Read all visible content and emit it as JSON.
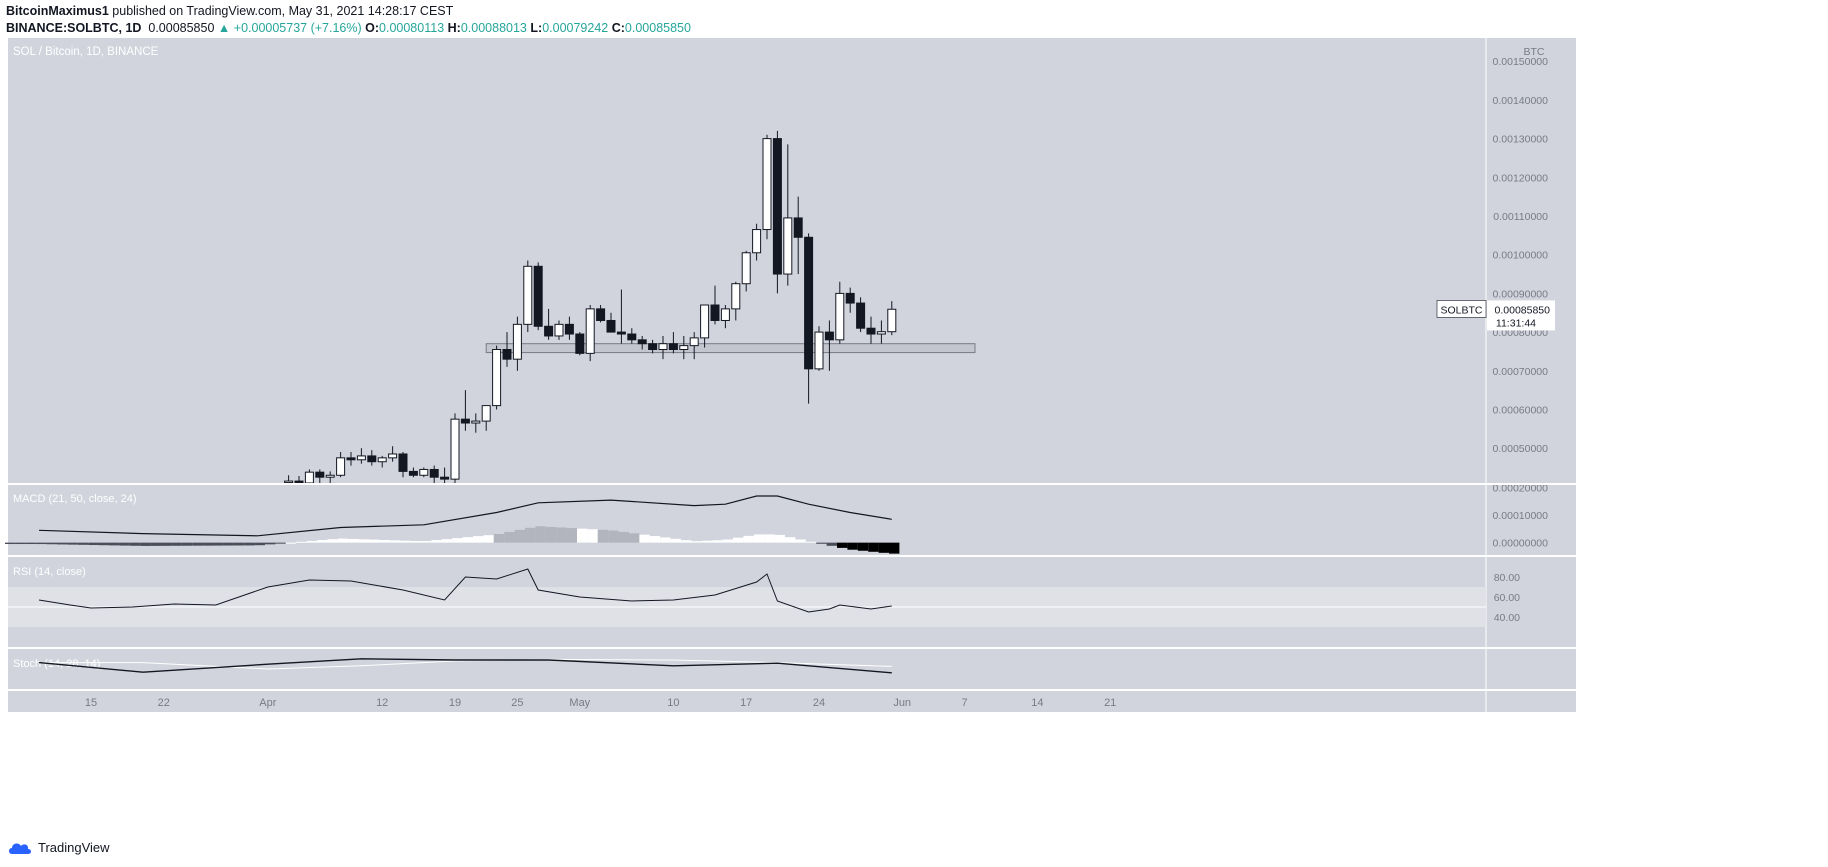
{
  "header": {
    "author": "BitcoinMaximus1",
    "published": "published on TradingView.com, May 31, 2021 14:28:17 CEST",
    "symbol": "BINANCE:SOLBTC, 1D",
    "last": "0.00085850",
    "change_arrow": "▲",
    "change": "+0.00005737 (+7.16%)",
    "o_label": "O:",
    "o": "0.00080113",
    "h_label": "H:",
    "h": "0.00088013",
    "l_label": "L:",
    "l": "0.00079242",
    "c_label": "C:",
    "c": "0.00085850"
  },
  "footer": {
    "brand": "TradingView",
    "logo_icon": "tradingview-cloud-icon"
  },
  "colors": {
    "background": "#d1d4dc",
    "candle_up": "#ffffff",
    "candle_down": "#131722",
    "rsi_band": "#dfe1e7",
    "line": "#131722"
  },
  "chart_data": {
    "type": "candlestick",
    "title": "SOL / Bitcoin, 1D, BINANCE",
    "price_axis_label": "BTC",
    "y_ticks": [
      "0.00150000",
      "0.00140000",
      "0.00130000",
      "0.00120000",
      "0.00110000",
      "0.00100000",
      "0.00090000",
      "0.00080000",
      "0.00070000",
      "0.00060000",
      "0.00050000"
    ],
    "ylim": [
      0.00041,
      0.00156
    ],
    "x_tick_labels": [
      "15",
      "22",
      "Apr",
      "12",
      "19",
      "25",
      "May",
      "10",
      "17",
      "24",
      "Jun",
      "7",
      "14",
      "21"
    ],
    "x_tick_dates": [
      "2021-03-15",
      "2021-03-22",
      "2021-04-01",
      "2021-04-12",
      "2021-04-19",
      "2021-04-25",
      "2021-05-01",
      "2021-05-10",
      "2021-05-17",
      "2021-05-24",
      "2021-06-01",
      "2021-06-07",
      "2021-06-14",
      "2021-06-21"
    ],
    "last_price_label": {
      "symbol": "SOLBTC",
      "price": "0.00085850",
      "countdown": "11:31:44"
    },
    "support_zone": {
      "from": "2021-04-22",
      "to": "2021-06-08",
      "low": 0.000747,
      "high": 0.00077
    },
    "candles": [
      {
        "d": "2021-04-03",
        "o": 0.000412,
        "h": 0.00043,
        "l": 0.000405,
        "c": 0.000415
      },
      {
        "d": "2021-04-04",
        "o": 0.000415,
        "h": 0.000428,
        "l": 0.000405,
        "c": 0.00041
      },
      {
        "d": "2021-04-05",
        "o": 0.00041,
        "h": 0.000445,
        "l": 0.000405,
        "c": 0.000438
      },
      {
        "d": "2021-04-06",
        "o": 0.000438,
        "h": 0.000445,
        "l": 0.00041,
        "c": 0.000425
      },
      {
        "d": "2021-04-07",
        "o": 0.000425,
        "h": 0.00044,
        "l": 0.00041,
        "c": 0.00043
      },
      {
        "d": "2021-04-08",
        "o": 0.00043,
        "h": 0.00049,
        "l": 0.000425,
        "c": 0.000475
      },
      {
        "d": "2021-04-09",
        "o": 0.000475,
        "h": 0.00049,
        "l": 0.000455,
        "c": 0.00047
      },
      {
        "d": "2021-04-10",
        "o": 0.00047,
        "h": 0.0005,
        "l": 0.00046,
        "c": 0.00048
      },
      {
        "d": "2021-04-11",
        "o": 0.00048,
        "h": 0.000495,
        "l": 0.000455,
        "c": 0.000465
      },
      {
        "d": "2021-04-12",
        "o": 0.000465,
        "h": 0.00048,
        "l": 0.00045,
        "c": 0.000475
      },
      {
        "d": "2021-04-13",
        "o": 0.000475,
        "h": 0.000505,
        "l": 0.000465,
        "c": 0.000485
      },
      {
        "d": "2021-04-14",
        "o": 0.000485,
        "h": 0.00049,
        "l": 0.000425,
        "c": 0.00044
      },
      {
        "d": "2021-04-15",
        "o": 0.00044,
        "h": 0.00045,
        "l": 0.000425,
        "c": 0.00043
      },
      {
        "d": "2021-04-16",
        "o": 0.00043,
        "h": 0.00045,
        "l": 0.000425,
        "c": 0.000445
      },
      {
        "d": "2021-04-17",
        "o": 0.000445,
        "h": 0.000455,
        "l": 0.00041,
        "c": 0.000425
      },
      {
        "d": "2021-04-18",
        "o": 0.000425,
        "h": 0.00045,
        "l": 0.00041,
        "c": 0.00042
      },
      {
        "d": "2021-04-19",
        "o": 0.00042,
        "h": 0.00059,
        "l": 0.00041,
        "c": 0.000575
      },
      {
        "d": "2021-04-20",
        "o": 0.000575,
        "h": 0.00065,
        "l": 0.000545,
        "c": 0.000565
      },
      {
        "d": "2021-04-21",
        "o": 0.000565,
        "h": 0.00059,
        "l": 0.00054,
        "c": 0.00057
      },
      {
        "d": "2021-04-22",
        "o": 0.00057,
        "h": 0.00061,
        "l": 0.000545,
        "c": 0.00061
      },
      {
        "d": "2021-04-23",
        "o": 0.00061,
        "h": 0.000765,
        "l": 0.0006,
        "c": 0.000755
      },
      {
        "d": "2021-04-24",
        "o": 0.000755,
        "h": 0.0008,
        "l": 0.00071,
        "c": 0.00073
      },
      {
        "d": "2021-04-25",
        "o": 0.00073,
        "h": 0.00084,
        "l": 0.0007,
        "c": 0.00082
      },
      {
        "d": "2021-04-26",
        "o": 0.00082,
        "h": 0.000985,
        "l": 0.0008,
        "c": 0.00097
      },
      {
        "d": "2021-04-27",
        "o": 0.00097,
        "h": 0.00098,
        "l": 0.000805,
        "c": 0.000815
      },
      {
        "d": "2021-04-28",
        "o": 0.000815,
        "h": 0.00086,
        "l": 0.00078,
        "c": 0.00079
      },
      {
        "d": "2021-04-29",
        "o": 0.00079,
        "h": 0.00083,
        "l": 0.00078,
        "c": 0.00082
      },
      {
        "d": "2021-04-30",
        "o": 0.00082,
        "h": 0.00084,
        "l": 0.00078,
        "c": 0.000795
      },
      {
        "d": "2021-05-01",
        "o": 0.000795,
        "h": 0.0008,
        "l": 0.00074,
        "c": 0.000745
      },
      {
        "d": "2021-05-02",
        "o": 0.000745,
        "h": 0.00087,
        "l": 0.000725,
        "c": 0.00086
      },
      {
        "d": "2021-05-03",
        "o": 0.00086,
        "h": 0.00087,
        "l": 0.000825,
        "c": 0.00083
      },
      {
        "d": "2021-05-04",
        "o": 0.00083,
        "h": 0.00085,
        "l": 0.0008,
        "c": 0.0008
      },
      {
        "d": "2021-05-05",
        "o": 0.0008,
        "h": 0.00091,
        "l": 0.00077,
        "c": 0.000795
      },
      {
        "d": "2021-05-06",
        "o": 0.000795,
        "h": 0.00081,
        "l": 0.00077,
        "c": 0.00078
      },
      {
        "d": "2021-05-07",
        "o": 0.00078,
        "h": 0.00079,
        "l": 0.000755,
        "c": 0.00077
      },
      {
        "d": "2021-05-08",
        "o": 0.00077,
        "h": 0.00078,
        "l": 0.000745,
        "c": 0.000755
      },
      {
        "d": "2021-05-09",
        "o": 0.000755,
        "h": 0.00079,
        "l": 0.00073,
        "c": 0.00077
      },
      {
        "d": "2021-05-10",
        "o": 0.00077,
        "h": 0.0008,
        "l": 0.000745,
        "c": 0.000755
      },
      {
        "d": "2021-05-11",
        "o": 0.000755,
        "h": 0.00079,
        "l": 0.00073,
        "c": 0.000765
      },
      {
        "d": "2021-05-12",
        "o": 0.000765,
        "h": 0.0008,
        "l": 0.00073,
        "c": 0.000785
      },
      {
        "d": "2021-05-13",
        "o": 0.000785,
        "h": 0.00087,
        "l": 0.00076,
        "c": 0.00087
      },
      {
        "d": "2021-05-14",
        "o": 0.00087,
        "h": 0.00092,
        "l": 0.00082,
        "c": 0.00083
      },
      {
        "d": "2021-05-15",
        "o": 0.00083,
        "h": 0.00087,
        "l": 0.00081,
        "c": 0.00086
      },
      {
        "d": "2021-05-16",
        "o": 0.00086,
        "h": 0.00093,
        "l": 0.00083,
        "c": 0.000925
      },
      {
        "d": "2021-05-17",
        "o": 0.000925,
        "h": 0.00101,
        "l": 0.000905,
        "c": 0.001005
      },
      {
        "d": "2021-05-18",
        "o": 0.001005,
        "h": 0.00108,
        "l": 0.000985,
        "c": 0.001065
      },
      {
        "d": "2021-05-19",
        "o": 0.001065,
        "h": 0.00131,
        "l": 0.00104,
        "c": 0.0013
      },
      {
        "d": "2021-05-20",
        "o": 0.0013,
        "h": 0.00132,
        "l": 0.0009,
        "c": 0.00095
      },
      {
        "d": "2021-05-21",
        "o": 0.00095,
        "h": 0.001285,
        "l": 0.00092,
        "c": 0.001095
      },
      {
        "d": "2021-05-22",
        "o": 0.001095,
        "h": 0.00115,
        "l": 0.00095,
        "c": 0.001045
      },
      {
        "d": "2021-05-23",
        "o": 0.001045,
        "h": 0.001055,
        "l": 0.000615,
        "c": 0.000705
      },
      {
        "d": "2021-05-24",
        "o": 0.000705,
        "h": 0.000815,
        "l": 0.0007,
        "c": 0.0008
      },
      {
        "d": "2021-05-25",
        "o": 0.0008,
        "h": 0.00083,
        "l": 0.0007,
        "c": 0.00078
      },
      {
        "d": "2021-05-26",
        "o": 0.00078,
        "h": 0.00093,
        "l": 0.00077,
        "c": 0.0009
      },
      {
        "d": "2021-05-27",
        "o": 0.0009,
        "h": 0.000915,
        "l": 0.00085,
        "c": 0.000875
      },
      {
        "d": "2021-05-28",
        "o": 0.000875,
        "h": 0.00089,
        "l": 0.0008,
        "c": 0.00081
      },
      {
        "d": "2021-05-29",
        "o": 0.00081,
        "h": 0.00084,
        "l": 0.00077,
        "c": 0.000795
      },
      {
        "d": "2021-05-30",
        "o": 0.000795,
        "h": 0.00083,
        "l": 0.00077,
        "c": 0.000801
      },
      {
        "d": "2021-05-31",
        "o": 0.000801,
        "h": 0.00088,
        "l": 0.000792,
        "c": 0.000859
      }
    ],
    "macd": {
      "title": "MACD (21, 50, close, 24)",
      "y_ticks": [
        "0.00020000",
        "0.00010000",
        "0.00000000"
      ],
      "ylim": [
        -4.5e-05,
        0.00021
      ],
      "dates": [
        "2021-03-10",
        "2021-03-20",
        "2021-03-31",
        "2021-04-08",
        "2021-04-16",
        "2021-04-23",
        "2021-04-27",
        "2021-05-04",
        "2021-05-12",
        "2021-05-15",
        "2021-05-18",
        "2021-05-20",
        "2021-05-23",
        "2021-05-27",
        "2021-05-31"
      ],
      "macd_line": [
        4.5e-05,
        3.3e-05,
        2.5e-05,
        5.5e-05,
        6.5e-05,
        0.00011,
        0.000145,
        0.000155,
        0.000135,
        0.00014,
        0.00017,
        0.00017,
        0.00014,
        0.00011,
        8.5e-05
      ],
      "histogram": [
        -5e-06,
        -1.2e-05,
        -1e-05,
        1.5e-05,
        5e-06,
        3e-05,
        6e-05,
        4.5e-05,
        5e-06,
        1e-05,
        3e-05,
        3e-05,
        5e-06,
        -2.5e-05,
        -4e-05
      ]
    },
    "rsi": {
      "title": "RSI (14, close)",
      "y_ticks": [
        "80.00",
        "60.00",
        "40.00"
      ],
      "band": [
        30,
        70
      ],
      "mid": 50,
      "ylim": [
        10,
        100
      ],
      "dates": [
        "2021-03-10",
        "2021-03-13",
        "2021-03-15",
        "2021-03-19",
        "2021-03-23",
        "2021-03-27",
        "2021-04-01",
        "2021-04-05",
        "2021-04-09",
        "2021-04-14",
        "2021-04-18",
        "2021-04-20",
        "2021-04-23",
        "2021-04-26",
        "2021-04-27",
        "2021-05-01",
        "2021-05-06",
        "2021-05-10",
        "2021-05-14",
        "2021-05-18",
        "2021-05-19",
        "2021-05-20",
        "2021-05-23",
        "2021-05-25",
        "2021-05-26",
        "2021-05-29",
        "2021-05-31"
      ],
      "values": [
        57,
        52,
        49,
        50,
        53,
        52,
        70,
        77,
        76,
        67,
        57,
        80,
        78,
        88,
        67,
        60,
        56,
        57,
        62,
        75,
        83,
        56,
        45,
        48,
        52,
        48,
        51
      ]
    },
    "stoch": {
      "title": "Stoch (14, 28, 14)",
      "ylim": [
        0,
        100
      ],
      "dates": [
        "2021-03-10",
        "2021-03-20",
        "2021-04-01",
        "2021-04-10",
        "2021-04-19",
        "2021-04-28",
        "2021-05-10",
        "2021-05-20",
        "2021-05-31"
      ],
      "k": [
        70,
        40,
        65,
        82,
        78,
        78,
        60,
        68,
        38
      ],
      "d": [
        70,
        70,
        50,
        60,
        75,
        80,
        78,
        70,
        58
      ]
    }
  }
}
